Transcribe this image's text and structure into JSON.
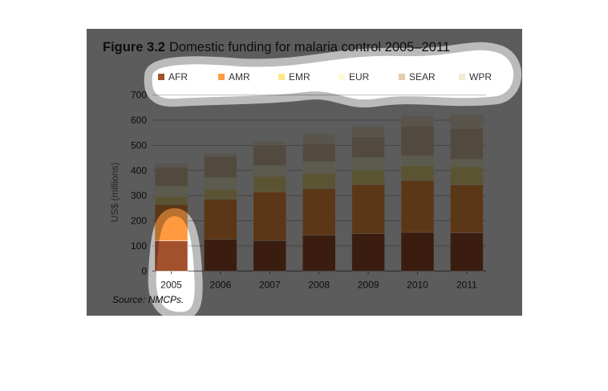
{
  "chart_data": {
    "type": "bar",
    "stacked": true,
    "title_prefix": "Figure 3.2",
    "title": "Domestic funding for malaria control 2005–2011",
    "xlabel": "",
    "ylabel": "US$ (millions)",
    "ylim": [
      0,
      700
    ],
    "yticks": [
      "0",
      "100",
      "200",
      "300",
      "400",
      "500",
      "600",
      "700"
    ],
    "grid": true,
    "legend_placement": "top",
    "categories": [
      "2005",
      "2006",
      "2007",
      "2008",
      "2009",
      "2010",
      "2011"
    ],
    "series": [
      {
        "name": "AFR",
        "color": "#a3502c",
        "values": [
          120,
          126,
          121,
          142,
          149,
          154,
          152
        ]
      },
      {
        "name": "AMR",
        "color": "#ff9a40",
        "values": [
          145,
          160,
          193,
          186,
          195,
          207,
          191
        ]
      },
      {
        "name": "EMR",
        "color": "#fde98a",
        "values": [
          32,
          40,
          63,
          62,
          58,
          58,
          72
        ]
      },
      {
        "name": "EUR",
        "color": "#fefbd8",
        "values": [
          40,
          45,
          42,
          45,
          49,
          39,
          29
        ]
      },
      {
        "name": "SEAR",
        "color": "#e6ccae",
        "values": [
          77,
          86,
          83,
          73,
          84,
          119,
          124
        ]
      },
      {
        "name": "WPR",
        "color": "#f5ead6",
        "values": [
          13,
          10,
          13,
          37,
          40,
          42,
          56
        ]
      }
    ],
    "source": "Source: NMCPs."
  }
}
